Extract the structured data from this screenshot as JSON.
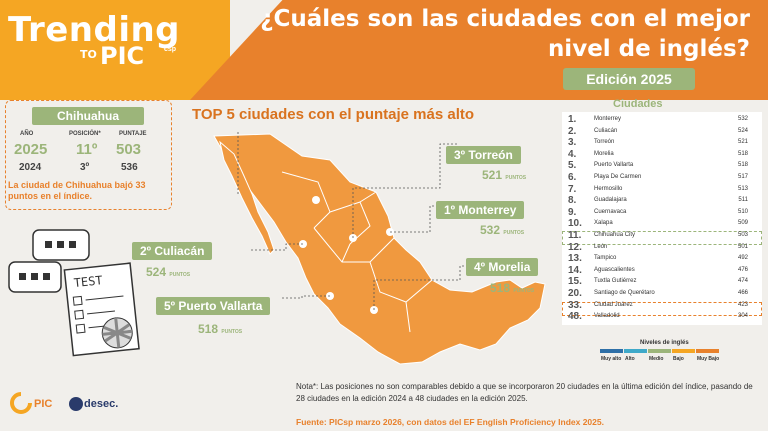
{
  "brand": {
    "trending": "Trending",
    "to": "TO",
    "pic": "PIC",
    "sup": "csp"
  },
  "title": "¿Cuáles son las ciudades con el mejor nivel de inglés?",
  "edition": "Edición 2025",
  "card": {
    "city": "Chihuahua",
    "year_label": "AÑO",
    "pos_label": "POSICIÓN*",
    "score_label": "PUNTAJE",
    "year_now": "2025",
    "pos_now": "11º",
    "score_now": "503",
    "year_prev": "2024",
    "pos_prev": "3º",
    "score_prev": "536",
    "note": "La ciudad de Chihuahua bajó 33 puntos en el índice."
  },
  "top5_title": "TOP  5 ciudades con el puntaje más alto",
  "top5": [
    {
      "label": "3º Torreón",
      "score": "521",
      "unit": "PUNTOS"
    },
    {
      "label": "1º Monterrey",
      "score": "532",
      "unit": "PUNTOS"
    },
    {
      "label": "2º Culiacán",
      "score": "524",
      "unit": "PUNTOS"
    },
    {
      "label": "4º Morelia",
      "score": "518",
      "unit": "PUNTOS"
    },
    {
      "label": "5º Puerto Vallarta",
      "score": "518",
      "unit": "PUNTOS"
    }
  ],
  "list_title": "Ciudades",
  "cities": [
    {
      "rank": "1.",
      "city": "Monterrey",
      "score": "532"
    },
    {
      "rank": "2.",
      "city": "Culiacán",
      "score": "524"
    },
    {
      "rank": "3.",
      "city": "Torreón",
      "score": "521"
    },
    {
      "rank": "4.",
      "city": "Morelia",
      "score": "518"
    },
    {
      "rank": "5.",
      "city": "Puerto Vallarta",
      "score": "518"
    },
    {
      "rank": "6.",
      "city": "Playa De Carmen",
      "score": "517"
    },
    {
      "rank": "7.",
      "city": "Hermosillo",
      "score": "513"
    },
    {
      "rank": "8.",
      "city": "Guadalajara",
      "score": "511"
    },
    {
      "rank": "9.",
      "city": "Cuernavaca",
      "score": "510"
    },
    {
      "rank": "10.",
      "city": "Xalapa",
      "score": "509"
    },
    {
      "rank": "11.",
      "city": "Chihuahua City",
      "score": "503"
    },
    {
      "rank": "12.",
      "city": "León",
      "score": "501"
    },
    {
      "rank": "13.",
      "city": "Tampico",
      "score": "492"
    },
    {
      "rank": "14.",
      "city": "Aguascalientes",
      "score": "476"
    },
    {
      "rank": "15.",
      "city": "Tuxtla Gutiérrez",
      "score": "474"
    },
    {
      "rank": "20.",
      "city": "Santiago de Querétaro",
      "score": "466"
    },
    {
      "rank": "33.",
      "city": "Ciudad Juárez",
      "score": "423"
    },
    {
      "rank": "48.",
      "city": "Valladolid",
      "score": "304"
    }
  ],
  "legend": {
    "title": "Niveles de inglés",
    "items": [
      {
        "label": "Muy alto",
        "color": "#2e6fa7"
      },
      {
        "label": "Alto",
        "color": "#3fa9c9"
      },
      {
        "label": "Medio",
        "color": "#9cb57a"
      },
      {
        "label": "Bajo",
        "color": "#f5a623"
      },
      {
        "label": "Muy Bajo",
        "color": "#e8812c"
      }
    ]
  },
  "note": "Nota*: Las posiciones no son comparables debido a que se incorporaron 20 ciudades en la última edición del índice, pasando de 28 ciudades en la edición 2024 a 48 ciudades en la edición 2025.",
  "source": "Fuente:  PICsp marzo 2026, con datos del EF English Proficiency Index 2025.",
  "logos": {
    "pic": "PIC",
    "desec": "desec."
  },
  "colors": {
    "accent": "#e8812c",
    "green": "#9cb57a",
    "map": "#f0993f"
  }
}
